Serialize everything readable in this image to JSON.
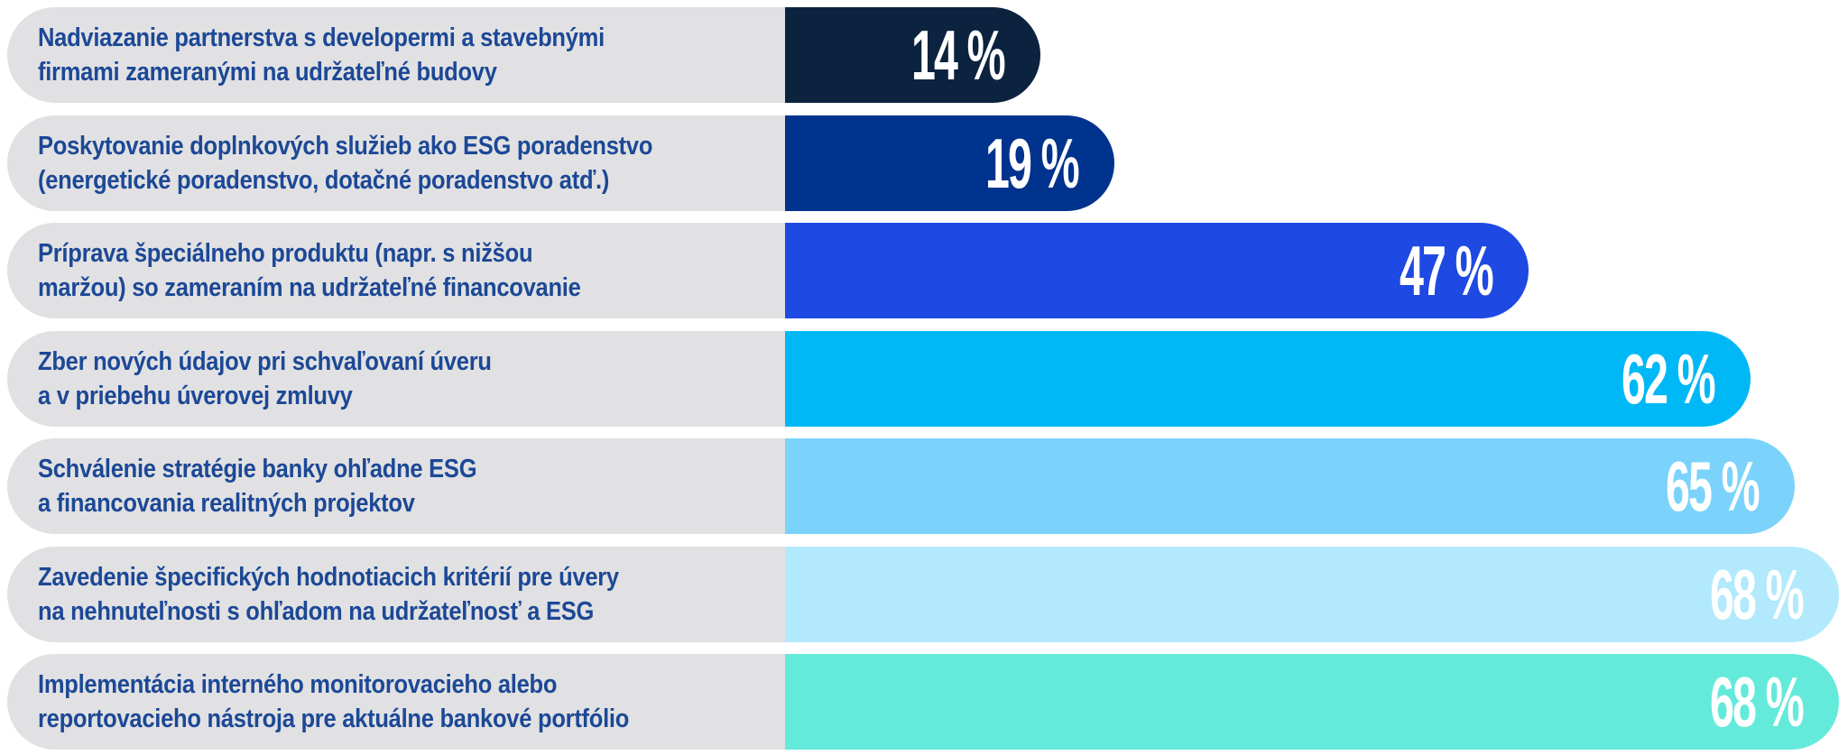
{
  "chart_data": {
    "type": "bar",
    "orientation": "horizontal",
    "unit": "%",
    "categories": [
      [
        "Nadviazanie partnerstva s developermi a stavebnými",
        "firmami zameranými na udržateľné budovy"
      ],
      [
        "Poskytovanie doplnkových služieb ako ESG poradenstvo",
        "(energetické poradenstvo, dotačné poradenstvo atď.)"
      ],
      [
        "Príprava špeciálneho produktu (napr. s nižšou",
        "maržou) so zameraním na udržateľné financovanie"
      ],
      [
        "Zber nových údajov pri schvaľovaní úveru",
        "a v priebehu úverovej zmluvy"
      ],
      [
        "Schválenie stratégie banky ohľadne ESG",
        "a financovania realitných projektov"
      ],
      [
        "Zavedenie špecifických hodnotiacich kritérií pre úvery",
        "na nehnuteľnosti s ohľadom na udržateľnosť a ESG"
      ],
      [
        "Implementácia interného monitorovacieho alebo",
        "reportovacieho nástroja pre aktuálne bankové portfólio"
      ]
    ],
    "values": [
      14,
      19,
      47,
      62,
      65,
      68,
      68
    ],
    "value_labels": [
      "14 %",
      "19 %",
      "47 %",
      "62 %",
      "65 %",
      "68 %",
      "68 %"
    ],
    "colors": [
      "#0c2340",
      "#00338d",
      "#1e49e2",
      "#00b8f5",
      "#7bd3fc",
      "#b2e9fd",
      "#64eada"
    ],
    "label_color": "#1c4896",
    "label_background": "#e1e1e3",
    "grid": false
  }
}
